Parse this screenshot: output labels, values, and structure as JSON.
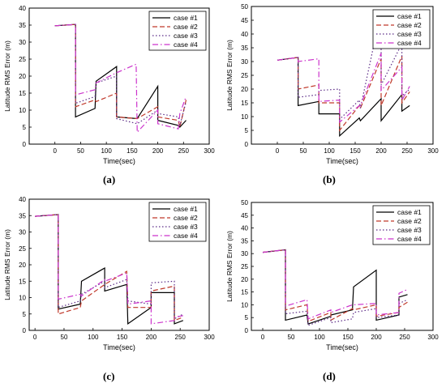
{
  "styles": {
    "case #1": {
      "color": "#000000",
      "dash": ""
    },
    "case #2": {
      "color": "#c0392b",
      "dash": "6,3"
    },
    "case #3": {
      "color": "#5b2a86",
      "dash": "1.5,2.5"
    },
    "case #4": {
      "color": "#cc33cc",
      "dash": "7,3,1.5,3"
    }
  },
  "chart_data": [
    {
      "type": "line",
      "caption": "(a)",
      "xlabel": "Time(sec)",
      "ylabel": "Latitude RMS Error (m)",
      "xlim": [
        -50,
        300
      ],
      "xticks": [
        0,
        50,
        100,
        150,
        200,
        250,
        300
      ],
      "ylim": [
        0,
        40
      ],
      "yticks": [
        0,
        5,
        10,
        15,
        20,
        25,
        30,
        35,
        40
      ],
      "legend_position": "top-right",
      "series": [
        {
          "name": "case #1",
          "x": [
            0,
            40,
            40,
            78,
            80,
            120,
            120,
            160,
            200,
            200,
            240,
            243,
            255
          ],
          "y": [
            34.8,
            35.2,
            8,
            10.5,
            18.5,
            22.8,
            8,
            7.5,
            17,
            7,
            5.5,
            5,
            7
          ]
        },
        {
          "name": "case #2",
          "x": [
            0,
            40,
            40,
            78,
            80,
            120,
            120,
            160,
            200,
            200,
            240,
            243,
            255
          ],
          "y": [
            34.8,
            35.2,
            11,
            13,
            12.5,
            15,
            8,
            7.5,
            11,
            8,
            7,
            5,
            13
          ]
        },
        {
          "name": "case #3",
          "x": [
            0,
            40,
            40,
            78,
            80,
            120,
            120,
            160,
            200,
            200,
            240,
            243,
            255
          ],
          "y": [
            34.8,
            35.2,
            12,
            14,
            18,
            20,
            7.5,
            6,
            10,
            9,
            8,
            5.5,
            12.5
          ]
        },
        {
          "name": "case #4",
          "x": [
            0,
            40,
            40,
            78,
            80,
            120,
            120,
            158,
            160,
            200,
            200,
            240,
            243,
            255
          ],
          "y": [
            34.8,
            35.2,
            14.5,
            16,
            18,
            21,
            21,
            23.5,
            3.5,
            10,
            6,
            4.5,
            9,
            14
          ]
        }
      ]
    },
    {
      "type": "line",
      "caption": "(b)",
      "xlabel": "Time(sec)",
      "ylabel": "Latitude RMS Error (m)",
      "xlim": [
        -50,
        300
      ],
      "xticks": [
        0,
        50,
        100,
        150,
        200,
        250,
        300
      ],
      "ylim": [
        0,
        50
      ],
      "yticks": [
        0,
        5,
        10,
        15,
        20,
        25,
        30,
        35,
        40,
        45,
        50
      ],
      "legend_position": "top-right",
      "series": [
        {
          "name": "case #1",
          "x": [
            0,
            40,
            40,
            80,
            80,
            120,
            120,
            158,
            160,
            200,
            200,
            240,
            240,
            255
          ],
          "y": [
            30.5,
            31.5,
            14,
            15.5,
            11,
            11,
            3,
            9.5,
            8.5,
            16.5,
            8.5,
            18,
            12,
            14
          ]
        },
        {
          "name": "case #2",
          "x": [
            0,
            40,
            40,
            80,
            80,
            120,
            120,
            158,
            160,
            200,
            200,
            240,
            240,
            255
          ],
          "y": [
            30.5,
            31.5,
            20,
            21.5,
            15,
            15,
            5,
            14,
            13,
            31,
            14,
            32,
            15,
            19
          ]
        },
        {
          "name": "case #3",
          "x": [
            0,
            40,
            40,
            80,
            80,
            120,
            120,
            158,
            160,
            200,
            200,
            240,
            240,
            255
          ],
          "y": [
            30.5,
            31.5,
            17,
            18,
            19.5,
            20,
            9,
            16,
            13,
            48.5,
            21.5,
            36.5,
            17.5,
            20
          ]
        },
        {
          "name": "case #4",
          "x": [
            0,
            40,
            40,
            80,
            80,
            120,
            120,
            158,
            160,
            200,
            200,
            240,
            240,
            255
          ],
          "y": [
            30.5,
            31.5,
            30,
            31,
            15.5,
            16,
            8,
            14,
            14,
            33,
            19.5,
            28,
            16,
            21
          ]
        }
      ]
    },
    {
      "type": "line",
      "caption": "(c)",
      "xlabel": "Time(sec)",
      "ylabel": "Latitude RMS Error (m)",
      "xlim": [
        -10,
        300
      ],
      "xticks": [
        0,
        50,
        100,
        150,
        200,
        250,
        300
      ],
      "ylim": [
        0,
        40
      ],
      "yticks": [
        0,
        5,
        10,
        15,
        20,
        25,
        30,
        35,
        40
      ],
      "legend_position": "top-right",
      "series": [
        {
          "name": "case #1",
          "x": [
            0,
            40,
            40,
            78,
            80,
            120,
            120,
            158,
            160,
            200,
            200,
            240,
            240,
            255
          ],
          "y": [
            34.8,
            35.3,
            6.5,
            8,
            15,
            19,
            12,
            14,
            2,
            7,
            11.5,
            11.5,
            2,
            3
          ]
        },
        {
          "name": "case #2",
          "x": [
            0,
            40,
            40,
            78,
            80,
            120,
            120,
            158,
            160,
            200,
            200,
            240,
            240,
            255
          ],
          "y": [
            34.8,
            35.3,
            5,
            7,
            9,
            14,
            14,
            18,
            7,
            7,
            12,
            13.5,
            3,
            4
          ]
        },
        {
          "name": "case #3",
          "x": [
            0,
            40,
            40,
            78,
            80,
            120,
            120,
            158,
            160,
            200,
            200,
            240,
            240,
            255
          ],
          "y": [
            34.8,
            35.3,
            7,
            9,
            11,
            15,
            13,
            15.5,
            9,
            8,
            14.5,
            15,
            3.5,
            5
          ]
        },
        {
          "name": "case #4",
          "x": [
            0,
            40,
            40,
            78,
            80,
            120,
            120,
            158,
            160,
            200,
            200,
            240,
            240,
            255
          ],
          "y": [
            34.8,
            35.3,
            9.5,
            11,
            10.5,
            15.5,
            15,
            17.5,
            8,
            9,
            2,
            3,
            4,
            4.5
          ]
        }
      ]
    },
    {
      "type": "line",
      "caption": "(d)",
      "xlabel": "Time(sec)",
      "ylabel": "Latitude RMS Error (m)",
      "xlim": [
        -20,
        300
      ],
      "xticks": [
        0,
        50,
        100,
        150,
        200,
        250,
        300
      ],
      "ylim": [
        0,
        50
      ],
      "yticks": [
        0,
        5,
        10,
        15,
        20,
        25,
        30,
        35,
        40,
        45,
        50
      ],
      "legend_position": "top-right",
      "series": [
        {
          "name": "case #1",
          "x": [
            0,
            40,
            40,
            78,
            80,
            120,
            120,
            158,
            160,
            200,
            200,
            240,
            240,
            255
          ],
          "y": [
            30.5,
            31.5,
            4,
            6,
            2.5,
            5.5,
            6,
            8,
            17,
            23.5,
            4,
            6,
            13,
            14
          ]
        },
        {
          "name": "case #2",
          "x": [
            0,
            40,
            40,
            78,
            80,
            120,
            120,
            158,
            160,
            200,
            200,
            240,
            240,
            255
          ],
          "y": [
            30.5,
            31.5,
            8,
            10,
            3.5,
            7,
            4,
            8.5,
            8,
            10,
            5.5,
            7,
            9,
            11
          ]
        },
        {
          "name": "case #3",
          "x": [
            0,
            40,
            40,
            78,
            80,
            120,
            120,
            158,
            160,
            200,
            200,
            240,
            240,
            255
          ],
          "y": [
            30.5,
            31.5,
            6.5,
            7.5,
            2,
            5,
            3,
            4.5,
            7,
            8.5,
            5,
            6,
            10.5,
            12
          ]
        },
        {
          "name": "case #4",
          "x": [
            0,
            40,
            40,
            78,
            80,
            120,
            120,
            158,
            160,
            200,
            200,
            240,
            240,
            255
          ],
          "y": [
            30.5,
            31.5,
            9.5,
            12,
            4.5,
            8,
            7,
            10,
            10,
            10.5,
            6,
            7,
            14.5,
            16
          ]
        }
      ]
    }
  ]
}
